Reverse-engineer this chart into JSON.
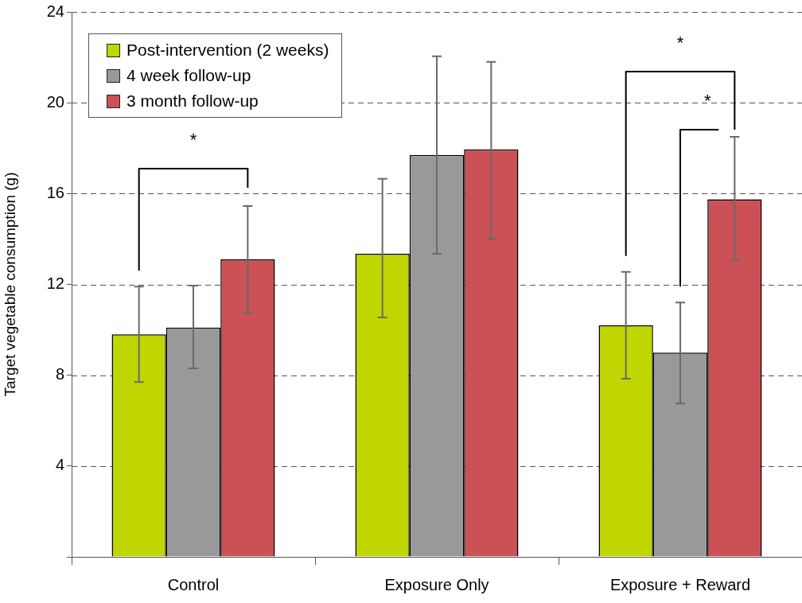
{
  "chart_data": {
    "type": "bar",
    "categories": [
      "Control",
      "Exposure Only",
      "Exposure + Reward"
    ],
    "ylabel": "Target vegetable consumption (g)",
    "series": [
      {
        "name": "Post-intervention (2 weeks)",
        "color": "#bfd600",
        "values": [
          9.8,
          13.35,
          10.2
        ],
        "errors": [
          [
            7.7,
            11.9
          ],
          [
            10.55,
            16.65
          ],
          [
            7.85,
            12.55
          ]
        ]
      },
      {
        "name": "4 week follow-up",
        "color": "#999999",
        "values": [
          10.1,
          17.7,
          9.0
        ],
        "errors": [
          [
            8.3,
            11.95
          ],
          [
            13.35,
            22.05
          ],
          [
            6.75,
            11.2
          ]
        ]
      },
      {
        "name": "3 month follow-up",
        "color": "#cb5156",
        "values": [
          13.1,
          17.95,
          15.75
        ],
        "errors": [
          [
            10.75,
            15.45
          ],
          [
            14.0,
            21.8
          ],
          [
            13.05,
            18.5
          ]
        ]
      }
    ],
    "ylim": [
      0,
      24
    ],
    "yticks": [
      {
        "value": 0,
        "label": null
      },
      4,
      8,
      12,
      16,
      20,
      24
    ],
    "grid": "y",
    "legend": "top left",
    "annotations": [
      "*",
      "*",
      "*"
    ]
  }
}
